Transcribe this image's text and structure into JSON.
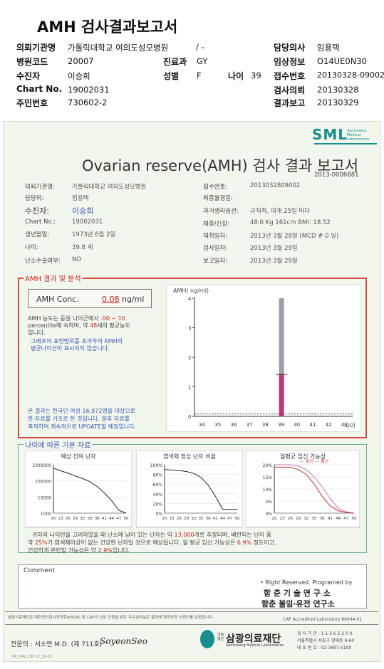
{
  "header": {
    "title": "AMH 검사결과보고서",
    "rows": [
      [
        {
          "l": "의뢰기관명",
          "v": "가톨릭대학교 여의도성모병원"
        },
        {
          "l": "",
          "v": "/ -"
        },
        {
          "l": "담당의사",
          "v": "임용택"
        }
      ],
      [
        {
          "l": "병원코드",
          "v": "20007"
        },
        {
          "l": "진료과",
          "v": "GY"
        },
        {
          "l": "임상정보",
          "v": "O14UE0N30"
        }
      ],
      [
        {
          "l": "수진자",
          "v": "이승희"
        },
        {
          "l": "성별",
          "v": "F"
        },
        {
          "l": "나이",
          "v": "39"
        },
        {
          "l": "접수번호",
          "v": "20130328-09002"
        }
      ],
      [
        {
          "l": "Chart No.",
          "v": "19002031"
        },
        {
          "l": "검사의뢰",
          "v": "20130328"
        }
      ],
      [
        {
          "l": "주민번호",
          "v": "730602-2"
        },
        {
          "l": "결과보고",
          "v": "20130329"
        }
      ]
    ]
  },
  "report": {
    "logo": "SML",
    "logo_sub1": "Samkwang",
    "logo_sub2": "Medical",
    "logo_sub3": "Laboratories",
    "title": "Ovarian reserve(AMH) 검사 결과 보고서",
    "report_no": "2013-0006681",
    "left_fields": [
      {
        "l": "의뢰기관명:",
        "v": "가톨릭대학교 여의도성모병원"
      },
      {
        "l": "담당의:",
        "v": "임용택"
      },
      {
        "l": "수진자:",
        "v": "이승희"
      },
      {
        "l": "Chart No.:",
        "v": "19002031"
      },
      {
        "l": "생년월일:",
        "v": "1973년 6월 2일"
      },
      {
        "l": "나이:",
        "v": "39.8 세"
      },
      {
        "l": "난소수술여부:",
        "v": "NO"
      }
    ],
    "right_fields": [
      {
        "l": "접수번호:",
        "v": "2013032809002"
      },
      {
        "l": "최종월경일:",
        "v": ""
      },
      {
        "l": "과거생리습관:",
        "v": "규칙적, 대개 25일 마다"
      },
      {
        "l": "체중/신장:",
        "v": "48.0 Kg   161cm   BMI: 18.52"
      },
      {
        "l": "채취일자:",
        "v": "2013년 3월 28일  (MCD # 0 일)"
      },
      {
        "l": "검사일자:",
        "v": "2013년 3월 29일"
      },
      {
        "l": "보고일자:",
        "v": "2013년 3월 29일"
      }
    ],
    "amh_section": "AMH 결과 및 분석",
    "amh_label": "AMH Conc.",
    "amh_value": "0.08",
    "amh_unit": "ng/ml",
    "amh_text1a": "AMH 농도는 동일 나이군에서",
    "amh_text1b": ".00 ~ 10",
    "amh_text2a": "percentile에 속하며, 약",
    "amh_text2b": "48",
    "amh_text2c": "세의 평균농도",
    "amh_text3": "입니다.",
    "amh_text4": "그래프의 표현범위를 초과하여 AMH의",
    "amh_text5": "평균나이선이 표시되지 않습니다.",
    "amh_note1": "본 결과는 한국인 여성 16,972명을 대상으로",
    "amh_note2": "한 자료를 기초로 한 것입니다. 향후 자료를",
    "amh_note3": "축적하여 계속적으로 UPOATE할 예정입니다.",
    "basic_section": "나이에 따른 기본 자료",
    "chart_titles": [
      "예상 잔여 난자",
      "염색체 정상 난자 비율",
      "월평균 임신 가능성"
    ],
    "chart3_legend": "--: 임신 --: 출산",
    "summary1a": "귀하의 나이만을 고려하였을 때 난소에 남아 있는 난자는 약",
    "summary1b": "13,000",
    "summary1c": "개로 추정되며, 배란되는 난자 중",
    "summary2a": "약",
    "summary2b": "25%",
    "summary2c": "가 염색체이상이 없는 건강한 난자일 것으로 예상됩니다. 월 평균 임신 가능성은",
    "summary2d": "6.9%",
    "summary2e": "정도이고,",
    "summary3a": "건강하게 분만할 가능성은 약",
    "summary3b": "2.9%",
    "summary3c": "입니다.",
    "comment_label": "Comment",
    "rights": "• Right Reserved. Programed by",
    "inst1": "함 춘 기 술 연 구 소",
    "inst2": "함춘 불임·유전 연구소",
    "legal": "삼광의료재단은 대한진단검사의학회(KSLM) 및 CAP의 신임 인증을 받은 우수검사실로 결과에 정확성과 신뢰도를 보증합니다.",
    "cap": "CAP Accredited Laboratory 86944-01",
    "doctor": "전문의 : 서소연 M.D. (제 711호)",
    "signature": "SoyeonSeo",
    "foundation_prefix": "의료법인",
    "foundation": "삼광의료재단",
    "foundation_en": "Samkwang Medical Laboratories",
    "addr1": "검 사 기 관 : 1 1 3 6 5 2 0 0",
    "addr2": "서울특별시 서초구 양재동 9-60",
    "addr3": "대 표 번 호 : 02-3497-5100",
    "page_footer": "PR_SML_CIM   12_10-01"
  },
  "chart_data": [
    {
      "type": "bar",
      "title": "",
      "ylabel": "AMH( ng/ml)",
      "xlabel": "나이",
      "x": [
        34,
        35,
        36,
        37,
        38,
        39,
        40,
        41,
        42,
        43
      ],
      "ylim": [
        0,
        4
      ],
      "yticks": [
        0,
        1,
        2,
        3,
        4
      ],
      "series": [
        {
          "x": 39,
          "range": [
            1.42,
            4.0
          ],
          "color": "#9a9ea8"
        },
        {
          "x": 39,
          "range": [
            0,
            1.42
          ],
          "color": "#c2347a"
        }
      ],
      "patient_marker": 0.08
    },
    {
      "type": "line",
      "title": "예상 잔여 난자",
      "x": [
        20,
        23,
        26,
        29,
        32,
        35,
        38,
        41,
        44,
        47,
        50
      ],
      "yscale": "log",
      "yticks": [
        "1000000",
        "100000",
        "10000",
        "1000"
      ],
      "xticks": [
        "20",
        "23",
        "26",
        "29",
        "32",
        "35",
        "38",
        "41",
        "44",
        "47",
        "50"
      ],
      "values": [
        600000,
        420000,
        300000,
        200000,
        140000,
        90000,
        45000,
        18000,
        6000,
        1500,
        1000
      ]
    },
    {
      "type": "line",
      "title": "염색체 정상 난자 비율",
      "x": [
        20,
        23,
        26,
        29,
        32,
        35,
        38,
        41,
        44,
        47,
        50
      ],
      "yticks": [
        "100%",
        "80%",
        "60%",
        "40%",
        "20%",
        "0%"
      ],
      "xticks": [
        "20",
        "23",
        "26",
        "29",
        "32",
        "35",
        "38",
        "41",
        "44",
        "47",
        "50"
      ],
      "values": [
        90,
        89,
        88,
        86,
        82,
        74,
        58,
        35,
        8,
        8,
        8
      ]
    },
    {
      "type": "line",
      "title": "월평균 임신 가능성",
      "x": [
        20,
        23,
        26,
        29,
        32,
        35,
        38,
        41,
        44,
        47,
        50
      ],
      "yticks": [
        "20%",
        "15%",
        "10%",
        "5%",
        "0%"
      ],
      "xticks": [
        "20",
        "23",
        "26",
        "29",
        "32",
        "35",
        "38",
        "41",
        "44",
        "47",
        "50"
      ],
      "series": [
        {
          "name": "임신",
          "values": [
            20,
            20,
            20,
            19.5,
            18,
            15,
            11,
            6,
            2,
            0.5,
            0
          ],
          "color": "#c07ab8"
        },
        {
          "name": "출산",
          "values": [
            19,
            19,
            19,
            18,
            16,
            12,
            7,
            3,
            1,
            0.3,
            0
          ],
          "color": "#d02a2a"
        }
      ]
    }
  ]
}
